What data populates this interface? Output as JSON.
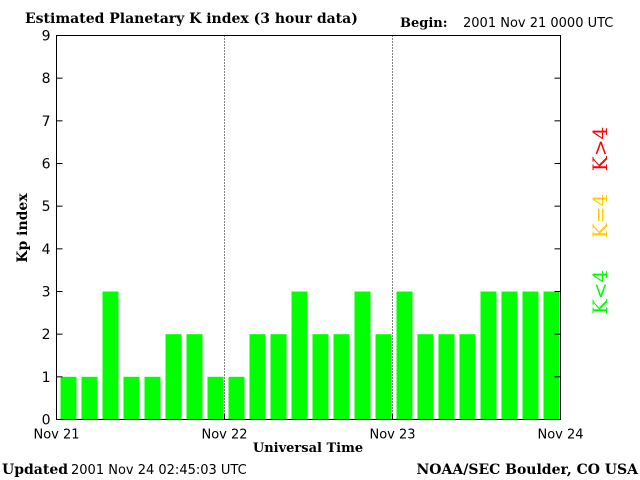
{
  "header": {
    "title": "Estimated Planetary K index (3 hour data)",
    "begin_label": "Begin:",
    "begin_value": "2001 Nov 21 0000 UTC"
  },
  "footer": {
    "updated_label": "Updated",
    "updated_value": "2001 Nov 24 02:45:03 UTC",
    "source": "NOAA/SEC Boulder, CO USA"
  },
  "legend": {
    "high": "K>4",
    "equal": "K=4",
    "low": "K<4"
  },
  "colors": {
    "low": "#00ff00",
    "equal": "#ffcc00",
    "high": "#ff0000",
    "axis": "#000000"
  },
  "chart_data": {
    "type": "bar",
    "title": "Estimated Planetary K index (3 hour data)",
    "xlabel": "Universal Time",
    "ylabel": "Kp index",
    "ylim": [
      0,
      9
    ],
    "yticks": [
      0,
      1,
      2,
      3,
      4,
      5,
      6,
      7,
      8,
      9
    ],
    "day_labels": [
      "Nov 21",
      "Nov 22",
      "Nov 23",
      "Nov 24"
    ],
    "interval_hours": 3,
    "values": [
      1,
      1,
      3,
      1,
      1,
      2,
      2,
      1,
      1,
      2,
      2,
      3,
      2,
      2,
      3,
      2,
      3,
      2,
      2,
      2,
      3,
      3,
      3,
      3
    ]
  }
}
